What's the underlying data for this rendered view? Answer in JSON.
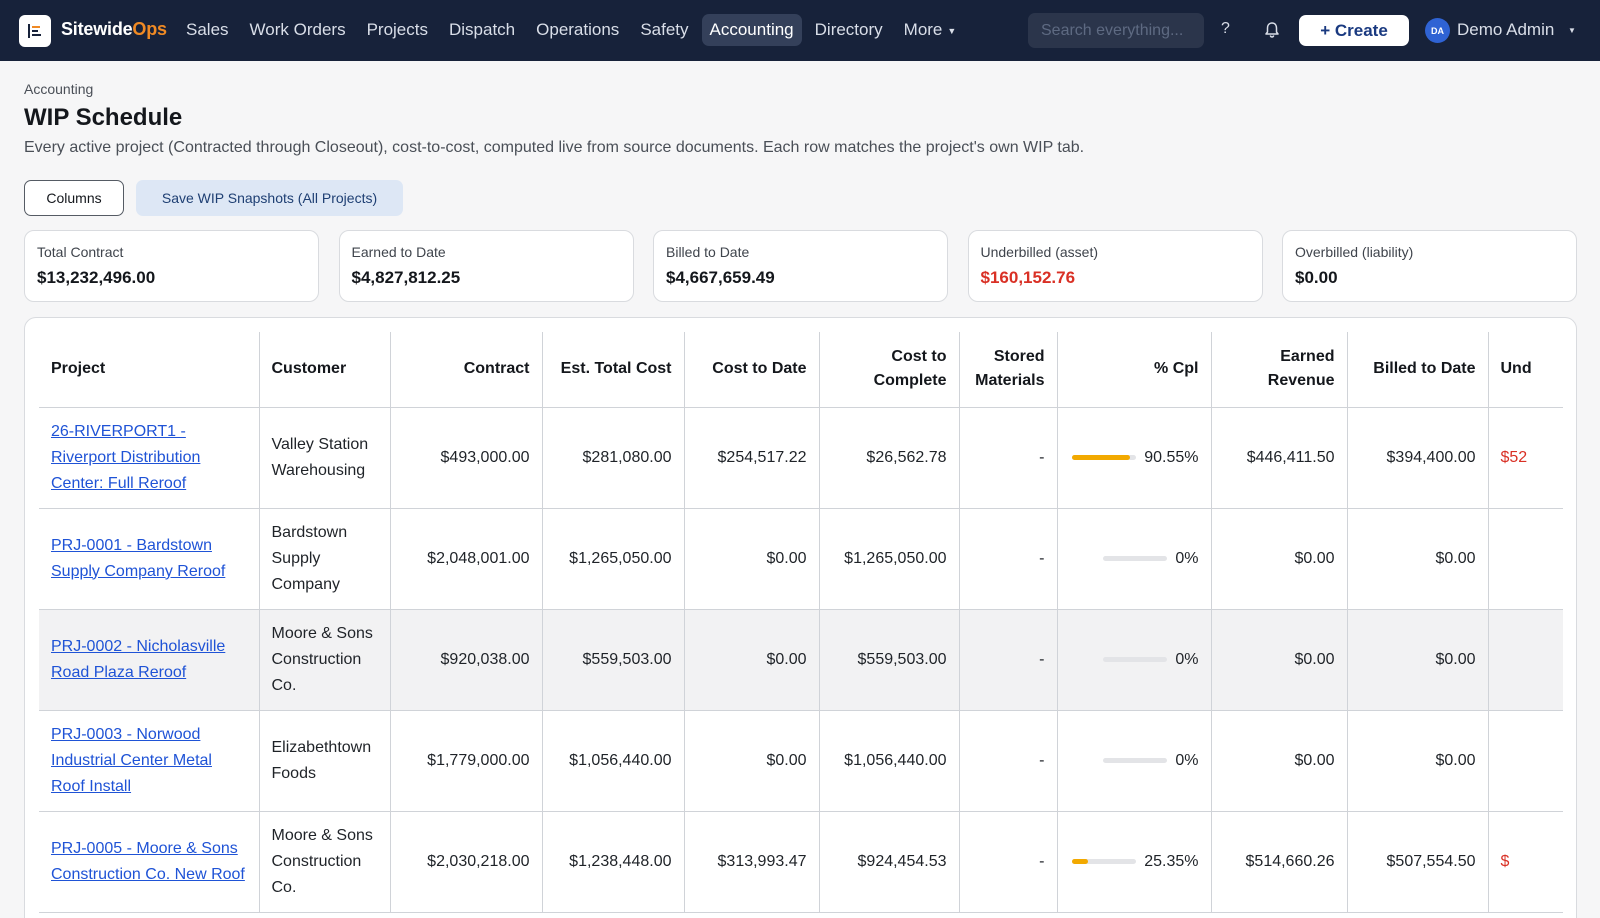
{
  "nav": {
    "brand_main": "Sitewide",
    "brand_accent": "Ops",
    "items": [
      "Sales",
      "Work Orders",
      "Projects",
      "Dispatch",
      "Operations",
      "Safety",
      "Accounting",
      "Directory",
      "More"
    ],
    "active": "Accounting",
    "search_placeholder": "Search everything...",
    "help": "?",
    "create_label": "+ Create",
    "user_initials": "DA",
    "user_name": "Demo Admin"
  },
  "header": {
    "breadcrumb": "Accounting",
    "title": "WIP Schedule",
    "subtitle": "Every active project (Contracted through Closeout), cost-to-cost, computed live from source documents. Each row matches the project's own WIP tab.",
    "columns_btn": "Columns",
    "snapshot_btn": "Save WIP Snapshots (All Projects)"
  },
  "cards": [
    {
      "label": "Total Contract",
      "value": "$13,232,496.00",
      "color": "#14171c"
    },
    {
      "label": "Earned to Date",
      "value": "$4,827,812.25",
      "color": "#14171c"
    },
    {
      "label": "Billed to Date",
      "value": "$4,667,659.49",
      "color": "#14171c"
    },
    {
      "label": "Underbilled (asset)",
      "value": "$160,152.76",
      "color": "#d93025"
    },
    {
      "label": "Overbilled (liability)",
      "value": "$0.00",
      "color": "#14171c"
    }
  ],
  "table": {
    "headers": [
      "Project",
      "Customer",
      "Contract",
      "Est. Total Cost",
      "Cost to Date",
      "Cost to Complete",
      "Stored Materials",
      "% Cpl",
      "Earned Revenue",
      "Billed to Date",
      "Und"
    ],
    "rows": [
      {
        "project": "26-RIVERPORT1 - Riverport Distribution Center: Full Reroof",
        "customer": "Valley Station Warehousing",
        "contract": "$493,000.00",
        "est_total_cost": "$281,080.00",
        "cost_to_date": "$254,517.22",
        "cost_to_complete": "$26,562.78",
        "stored_materials": "-",
        "pct": 90.55,
        "pct_label": "90.55%",
        "earned_revenue": "$446,411.50",
        "billed_to_date": "$394,400.00",
        "underbilled": "$52",
        "highlight": false
      },
      {
        "project": "PRJ-0001 - Bardstown Supply Company Reroof",
        "customer": "Bardstown Supply Company",
        "contract": "$2,048,001.00",
        "est_total_cost": "$1,265,050.00",
        "cost_to_date": "$0.00",
        "cost_to_complete": "$1,265,050.00",
        "stored_materials": "-",
        "pct": 0,
        "pct_label": "0%",
        "earned_revenue": "$0.00",
        "billed_to_date": "$0.00",
        "underbilled": "",
        "highlight": false
      },
      {
        "project": "PRJ-0002 - Nicholasville Road Plaza Reroof",
        "customer": "Moore & Sons Construction Co.",
        "contract": "$920,038.00",
        "est_total_cost": "$559,503.00",
        "cost_to_date": "$0.00",
        "cost_to_complete": "$559,503.00",
        "stored_materials": "-",
        "pct": 0,
        "pct_label": "0%",
        "earned_revenue": "$0.00",
        "billed_to_date": "$0.00",
        "underbilled": "",
        "highlight": true
      },
      {
        "project": "PRJ-0003 - Norwood Industrial Center Metal Roof Install",
        "customer": "Elizabethtown Foods",
        "contract": "$1,779,000.00",
        "est_total_cost": "$1,056,440.00",
        "cost_to_date": "$0.00",
        "cost_to_complete": "$1,056,440.00",
        "stored_materials": "-",
        "pct": 0,
        "pct_label": "0%",
        "earned_revenue": "$0.00",
        "billed_to_date": "$0.00",
        "underbilled": "",
        "highlight": false
      },
      {
        "project": "PRJ-0005 - Moore & Sons Construction Co. New Roof",
        "customer": "Moore & Sons Construction Co.",
        "contract": "$2,030,218.00",
        "est_total_cost": "$1,238,448.00",
        "cost_to_date": "$313,993.47",
        "cost_to_complete": "$924,454.53",
        "stored_materials": "-",
        "pct": 25.35,
        "pct_label": "25.35%",
        "earned_revenue": "$514,660.26",
        "billed_to_date": "$507,554.50",
        "underbilled": "$",
        "highlight": false
      }
    ]
  }
}
